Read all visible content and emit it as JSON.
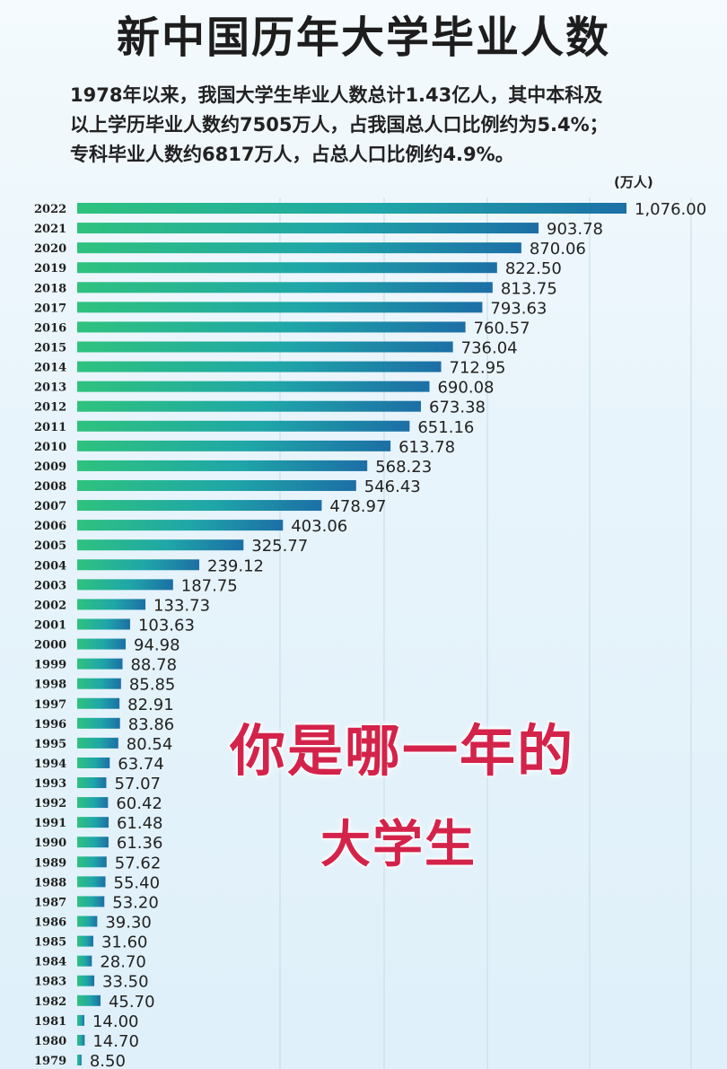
{
  "title": "新中国历年大学毕业人数",
  "subtitle_lines": [
    "1978年以来，我国大学生毕业人数总计1.43亿人，其中本科及",
    "以上学历毕业人数约7505万人，占我国总人口比例约为5.4%；",
    "专科毕业人数约6817万人，占总人口比例约4.9%。"
  ],
  "overlay_text": [
    "你是哪一年的",
    "大学生"
  ],
  "colors": {
    "bar_left": "#2ec27e",
    "bar_mid": "#1fa6a8",
    "bar_right": "#1c6fa6",
    "overlay_text": "#d4234a"
  },
  "chart_data": {
    "type": "bar",
    "orientation": "horizontal",
    "unit": "(万人)",
    "categories": [
      "2022",
      "2021",
      "2020",
      "2019",
      "2018",
      "2017",
      "2016",
      "2015",
      "2014",
      "2013",
      "2012",
      "2011",
      "2010",
      "2009",
      "2008",
      "2007",
      "2006",
      "2005",
      "2004",
      "2003",
      "2002",
      "2001",
      "2000",
      "1999",
      "1998",
      "1997",
      "1996",
      "1995",
      "1994",
      "1993",
      "1992",
      "1991",
      "1990",
      "1989",
      "1988",
      "1987",
      "1986",
      "1985",
      "1984",
      "1983",
      "1982",
      "1981",
      "1980",
      "1979"
    ],
    "values": [
      1076.0,
      903.78,
      870.06,
      822.5,
      813.75,
      793.63,
      760.57,
      736.04,
      712.95,
      690.08,
      673.38,
      651.16,
      613.78,
      568.23,
      546.43,
      478.97,
      403.06,
      325.77,
      239.12,
      187.75,
      133.73,
      103.63,
      94.98,
      88.78,
      85.85,
      82.91,
      83.86,
      80.54,
      63.74,
      57.07,
      60.42,
      61.48,
      61.36,
      57.62,
      55.4,
      53.2,
      39.3,
      31.6,
      28.7,
      33.5,
      45.7,
      14.0,
      14.7,
      8.5
    ],
    "value_labels": [
      "1,076.00",
      "903.78",
      "870.06",
      "822.50",
      "813.75",
      "793.63",
      "760.57",
      "736.04",
      "712.95",
      "690.08",
      "673.38",
      "651.16",
      "613.78",
      "568.23",
      "546.43",
      "478.97",
      "403.06",
      "325.77",
      "239.12",
      "187.75",
      "133.73",
      "103.63",
      "94.98",
      "88.78",
      "85.85",
      "82.91",
      "83.86",
      "80.54",
      "63.74",
      "57.07",
      "60.42",
      "61.48",
      "61.36",
      "57.62",
      "55.40",
      "53.20",
      "39.30",
      "31.60",
      "28.70",
      "33.50",
      "45.70",
      "14.00",
      "14.70",
      "8.50"
    ],
    "xlim": [
      0,
      1076
    ],
    "grid": "vertical",
    "legend": "none"
  }
}
